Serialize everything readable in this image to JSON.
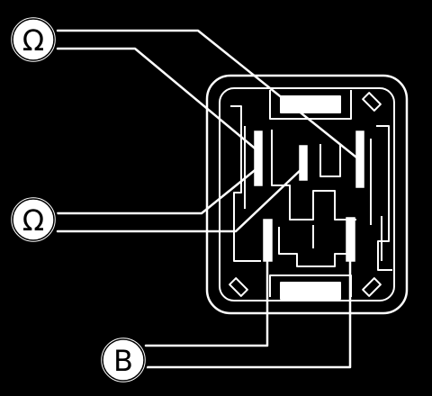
{
  "diagram": {
    "meters": [
      {
        "id": "ohmmeter-top",
        "symbol": "Ω"
      },
      {
        "id": "ohmmeter-bottom",
        "symbol": "Ω"
      },
      {
        "id": "battery",
        "symbol": "B"
      }
    ],
    "colors": {
      "background": "#000000",
      "line": "#ffffff"
    }
  }
}
